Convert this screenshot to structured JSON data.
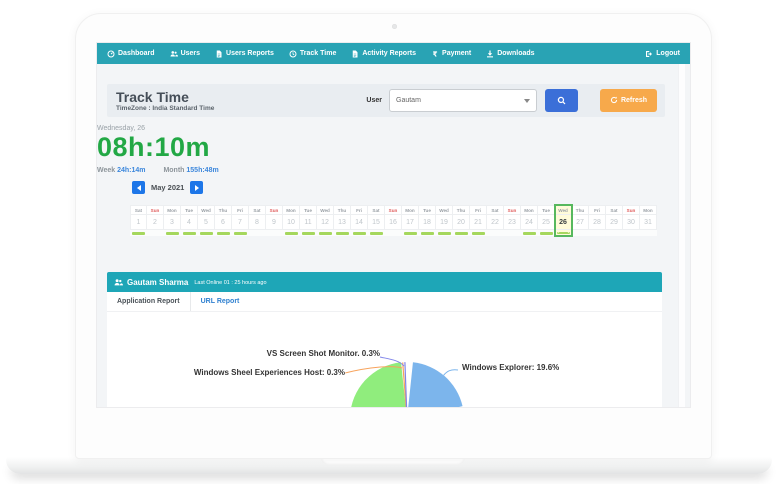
{
  "nav": {
    "items": [
      {
        "label": "Dashboard",
        "icon": "dashboard-icon"
      },
      {
        "label": "Users",
        "icon": "users-icon"
      },
      {
        "label": "Users Reports",
        "icon": "report-icon"
      },
      {
        "label": "Track Time",
        "icon": "clock-icon"
      },
      {
        "label": "Activity Reports",
        "icon": "report-icon"
      },
      {
        "label": "Payment",
        "icon": "rupee-icon"
      },
      {
        "label": "Downloads",
        "icon": "download-icon"
      }
    ],
    "logout": {
      "label": "Logout",
      "icon": "logout-icon"
    }
  },
  "header": {
    "title": "Track Time",
    "timezone": "TimeZone : India Standard Time",
    "user_label": "User",
    "selected_user": "Gautam",
    "refresh_label": "Refresh"
  },
  "summary": {
    "date_label": "Wednesday, 26",
    "total": "08h:10m",
    "week_label": "Week",
    "week_value": "24h:14m",
    "month_label": "Month",
    "month_value": "155h:48m"
  },
  "calendar": {
    "month_label": "May 2021",
    "days": [
      {
        "d": 1,
        "dow": "Sat",
        "tracked": true,
        "today": false
      },
      {
        "d": 2,
        "dow": "Sun",
        "tracked": false,
        "today": false
      },
      {
        "d": 3,
        "dow": "Mon",
        "tracked": true,
        "today": false
      },
      {
        "d": 4,
        "dow": "Tue",
        "tracked": true,
        "today": false
      },
      {
        "d": 5,
        "dow": "Wed",
        "tracked": true,
        "today": false
      },
      {
        "d": 6,
        "dow": "Thu",
        "tracked": true,
        "today": false
      },
      {
        "d": 7,
        "dow": "Fri",
        "tracked": true,
        "today": false
      },
      {
        "d": 8,
        "dow": "Sat",
        "tracked": false,
        "today": false
      },
      {
        "d": 9,
        "dow": "Sun",
        "tracked": false,
        "today": false
      },
      {
        "d": 10,
        "dow": "Mon",
        "tracked": true,
        "today": false
      },
      {
        "d": 11,
        "dow": "Tue",
        "tracked": true,
        "today": false
      },
      {
        "d": 12,
        "dow": "Wed",
        "tracked": true,
        "today": false
      },
      {
        "d": 13,
        "dow": "Thu",
        "tracked": true,
        "today": false
      },
      {
        "d": 14,
        "dow": "Fri",
        "tracked": true,
        "today": false
      },
      {
        "d": 15,
        "dow": "Sat",
        "tracked": true,
        "today": false
      },
      {
        "d": 16,
        "dow": "Sun",
        "tracked": false,
        "today": false
      },
      {
        "d": 17,
        "dow": "Mon",
        "tracked": true,
        "today": false
      },
      {
        "d": 18,
        "dow": "Tue",
        "tracked": true,
        "today": false
      },
      {
        "d": 19,
        "dow": "Wed",
        "tracked": true,
        "today": false
      },
      {
        "d": 20,
        "dow": "Thu",
        "tracked": true,
        "today": false
      },
      {
        "d": 21,
        "dow": "Fri",
        "tracked": true,
        "today": false
      },
      {
        "d": 22,
        "dow": "Sat",
        "tracked": false,
        "today": false
      },
      {
        "d": 23,
        "dow": "Sun",
        "tracked": false,
        "today": false
      },
      {
        "d": 24,
        "dow": "Mon",
        "tracked": true,
        "today": false
      },
      {
        "d": 25,
        "dow": "Tue",
        "tracked": true,
        "today": false
      },
      {
        "d": 26,
        "dow": "Wed",
        "tracked": true,
        "today": true
      },
      {
        "d": 27,
        "dow": "Thu",
        "tracked": false,
        "today": false
      },
      {
        "d": 28,
        "dow": "Fri",
        "tracked": false,
        "today": false
      },
      {
        "d": 29,
        "dow": "Sat",
        "tracked": false,
        "today": false
      },
      {
        "d": 30,
        "dow": "Sun",
        "tracked": false,
        "today": false
      },
      {
        "d": 31,
        "dow": "Mon",
        "tracked": false,
        "today": false
      }
    ]
  },
  "user_panel": {
    "name": "Gautam Sharma",
    "last_online": "Last Online 01 : 25 hours ago",
    "tabs": [
      {
        "label": "Application Report",
        "active": true
      },
      {
        "label": "URL Report",
        "active": false
      }
    ]
  },
  "chart_data": {
    "type": "pie",
    "title": "",
    "legend": "none",
    "labels": [
      "VS Screen Shot Monitor. 0.3%",
      "Windows Sheel Experiences Host: 0.3%",
      "Windows Explorer: 19.6%"
    ],
    "series": [
      {
        "name": "Windows Explorer",
        "value": 19.6,
        "color": "#7cb5ec"
      },
      {
        "name": "VS Screen Shot Monitor",
        "value": 0.3,
        "color": "#8085e9"
      },
      {
        "name": "Windows Sheel Experiences Host",
        "value": 0.3,
        "color": "#f7a35c"
      }
    ],
    "unlabeled_slice_color": "#90ed7d",
    "note_layout": "pie clipped at bottom of panel, labels with connector lines"
  },
  "colors": {
    "navbar": "#29a3b4",
    "user_bar": "#1ea6b7",
    "total_green": "#22a845",
    "link_blue": "#3c87dc",
    "search_btn": "#3b6fd8",
    "refresh_btn": "#f7a94b",
    "month_btn": "#1d76e8",
    "tracked_bar": "#a5d75d",
    "today_border": "#57b85e",
    "today_bg": "#fffbda",
    "sunday_red": "#e05c5c"
  }
}
